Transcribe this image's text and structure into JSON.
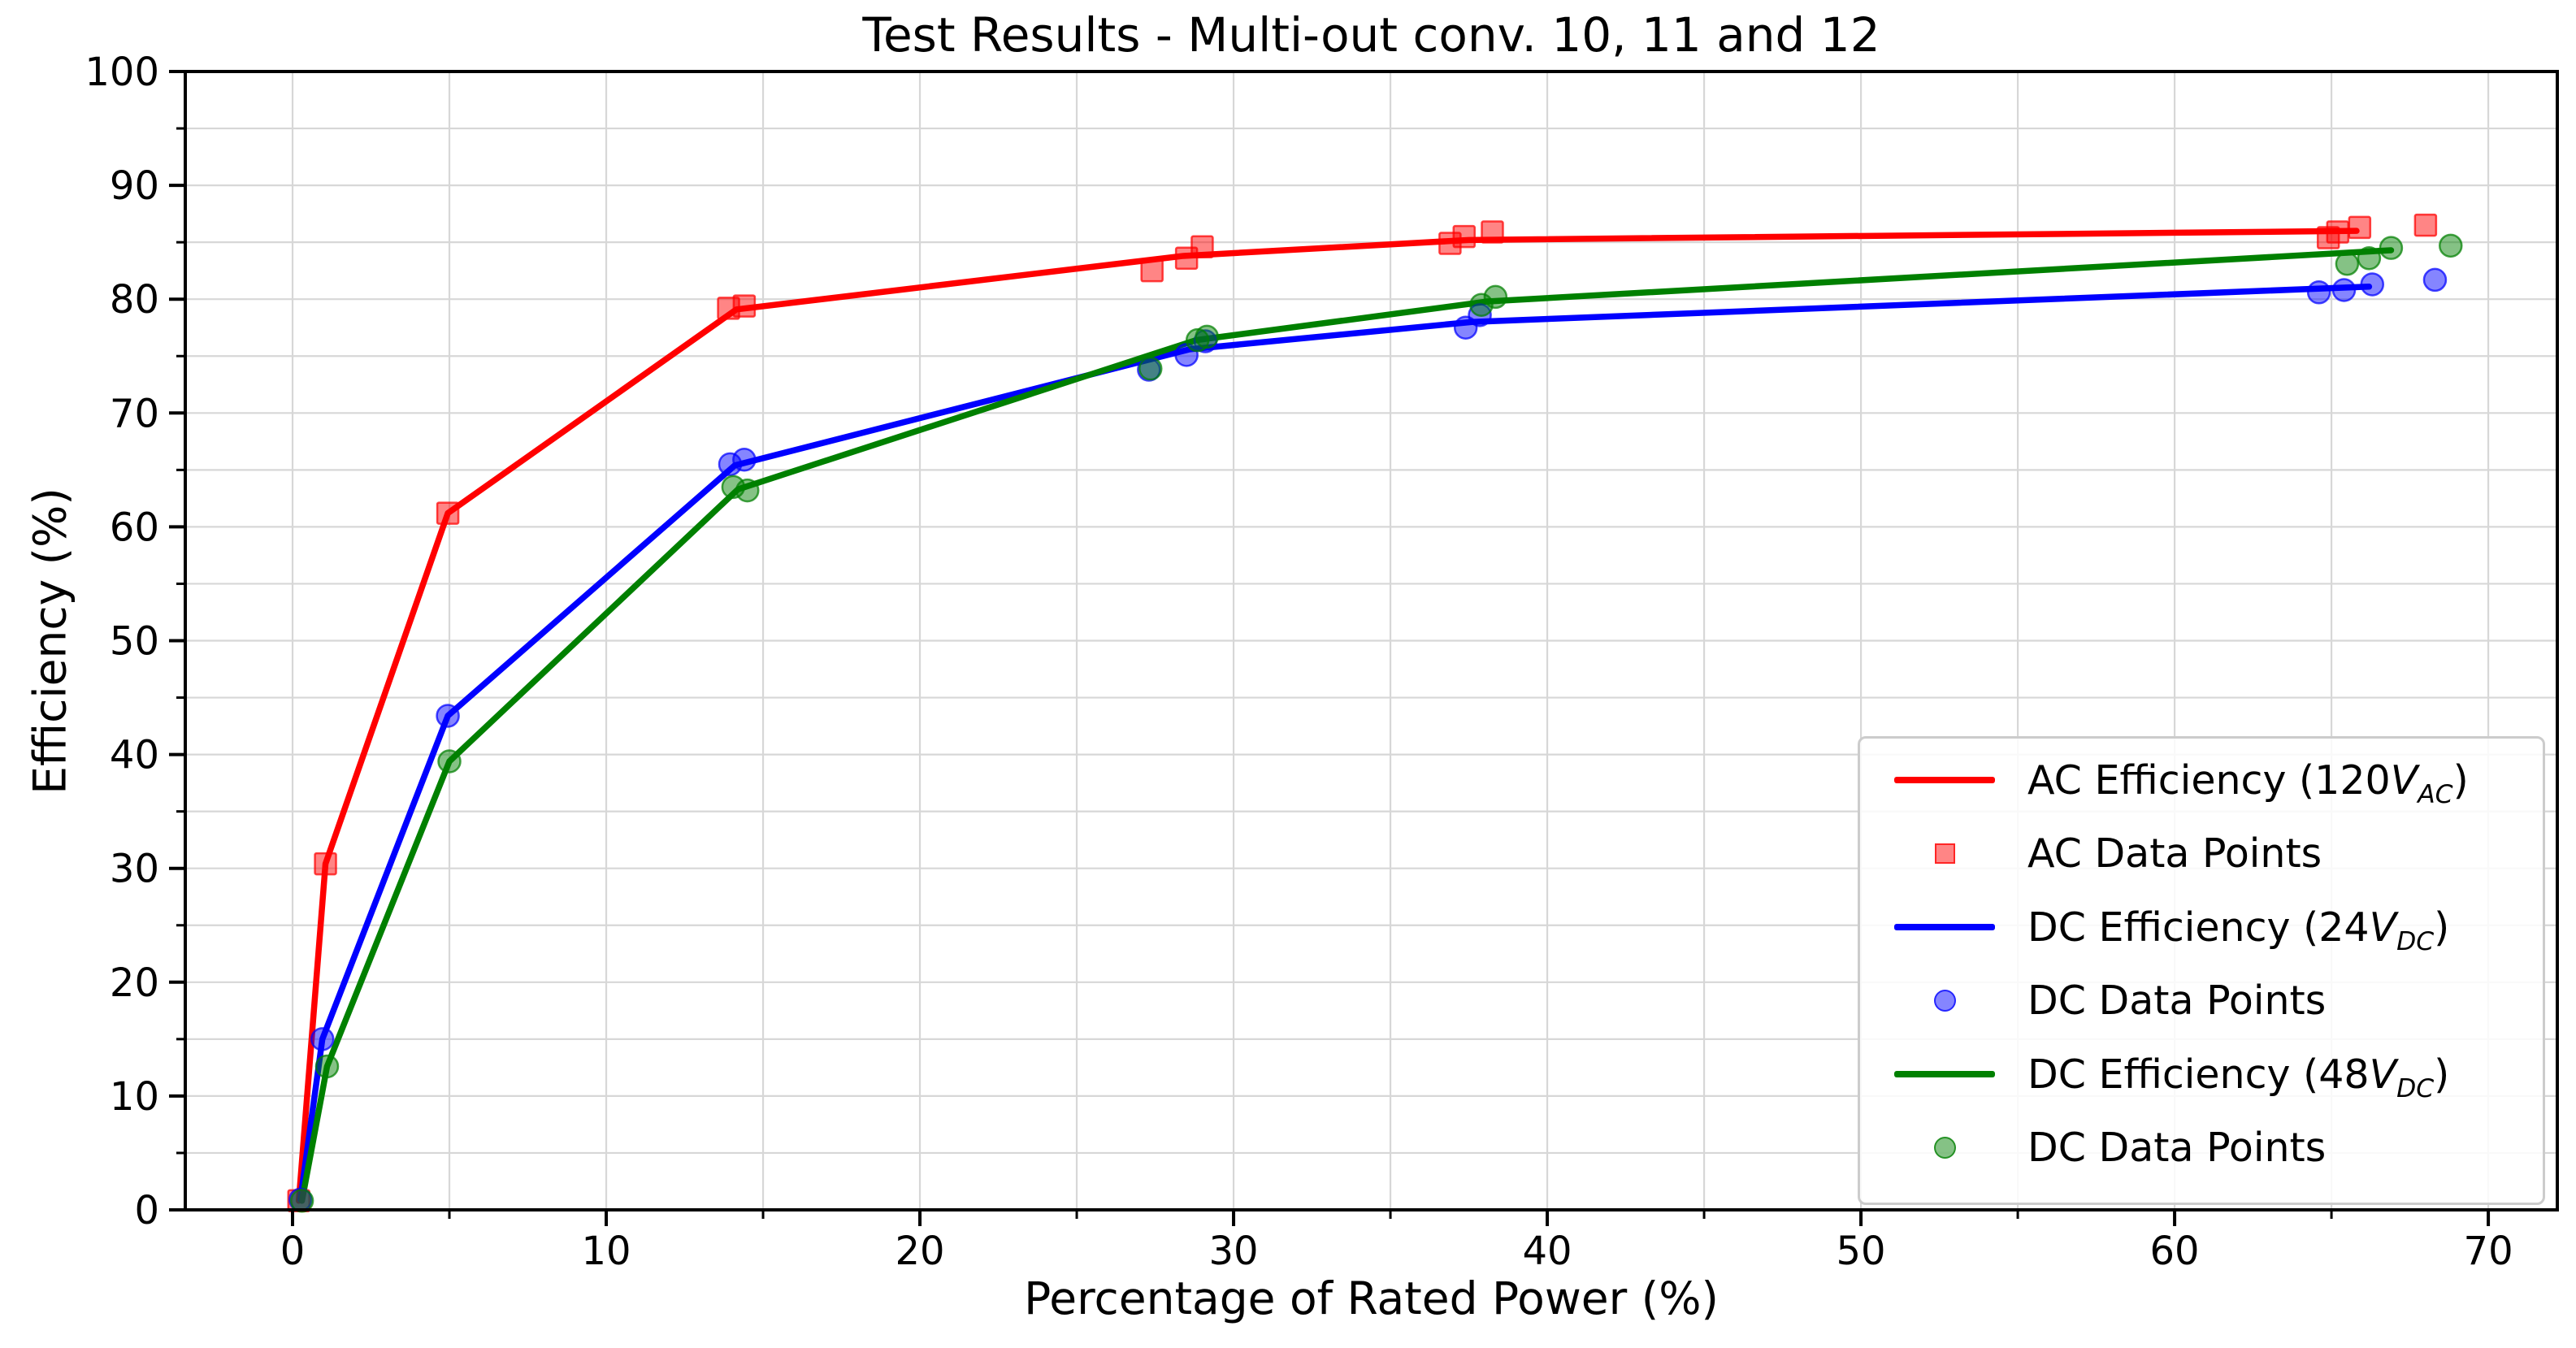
{
  "chart_data": {
    "type": "line+scatter",
    "title": "Test Results - Multi-out conv. 10, 11 and 12",
    "xlabel": "Percentage of Rated Power (%)",
    "ylabel": "Efficiency (%)",
    "xlim": [
      -3.42,
      72.2
    ],
    "ylim": [
      0,
      100
    ],
    "x_ticks": [
      0,
      10,
      20,
      30,
      40,
      50,
      60,
      70
    ],
    "y_ticks": [
      0,
      10,
      20,
      30,
      40,
      50,
      60,
      70,
      80,
      90,
      100
    ],
    "minor_tick_step": 5,
    "grid": {
      "step": 5,
      "color": "#d7d7d7",
      "on": true
    },
    "legend_position": "lower right",
    "series": [
      {
        "name": "AC Efficiency (120V_AC)",
        "kind": "line",
        "color": "#ff0000",
        "legend_label": {
          "pre": "AC Efficiency (120",
          "var": "V",
          "sub": "AC",
          "post": ")"
        },
        "points": [
          [
            0.2,
            0.8
          ],
          [
            1.05,
            30.4
          ],
          [
            4.95,
            61.2
          ],
          [
            14.15,
            79.1
          ],
          [
            28.4,
            83.8
          ],
          [
            37.5,
            85.2
          ],
          [
            65.8,
            86.0
          ]
        ]
      },
      {
        "name": "AC Data Points",
        "kind": "scatter",
        "marker": "square",
        "color": "#ff0000",
        "alpha": 0.5,
        "legend_label": {
          "pre": "AC Data Points"
        },
        "points": [
          [
            0.2,
            0.8
          ],
          [
            1.05,
            30.4
          ],
          [
            4.95,
            61.2
          ],
          [
            13.9,
            79.2
          ],
          [
            14.4,
            79.4
          ],
          [
            27.4,
            82.5
          ],
          [
            28.5,
            83.6
          ],
          [
            29.0,
            84.6
          ],
          [
            36.9,
            84.9
          ],
          [
            37.35,
            85.5
          ],
          [
            38.25,
            85.9
          ],
          [
            64.9,
            85.4
          ],
          [
            65.2,
            85.9
          ],
          [
            65.9,
            86.3
          ],
          [
            68.0,
            86.5
          ]
        ]
      },
      {
        "name": "DC Efficiency (24V_DC)",
        "kind": "line",
        "color": "#0000ff",
        "legend_label": {
          "pre": "DC Efficiency (24",
          "var": "V",
          "sub": "DC",
          "post": ")"
        },
        "points": [
          [
            0.25,
            0.9
          ],
          [
            0.95,
            15.0
          ],
          [
            4.95,
            43.4
          ],
          [
            14.1,
            65.4
          ],
          [
            28.6,
            75.6
          ],
          [
            37.6,
            78.0
          ],
          [
            66.2,
            81.1
          ]
        ]
      },
      {
        "name": "DC Data Points (24V)",
        "kind": "scatter",
        "marker": "circle",
        "color": "#0000ff",
        "alpha": 0.5,
        "legend_label": {
          "pre": "DC Data Points"
        },
        "points": [
          [
            0.25,
            0.9
          ],
          [
            0.95,
            15.0
          ],
          [
            4.95,
            43.4
          ],
          [
            13.95,
            65.5
          ],
          [
            14.4,
            65.9
          ],
          [
            27.3,
            73.8
          ],
          [
            28.5,
            75.1
          ],
          [
            29.1,
            76.3
          ],
          [
            37.4,
            77.5
          ],
          [
            37.85,
            78.6
          ],
          [
            64.6,
            80.6
          ],
          [
            65.4,
            80.8
          ],
          [
            66.3,
            81.3
          ],
          [
            68.3,
            81.7
          ]
        ]
      },
      {
        "name": "DC Efficiency (48V_DC)",
        "kind": "line",
        "color": "#008000",
        "legend_label": {
          "pre": "DC Efficiency (48",
          "var": "V",
          "sub": "DC",
          "post": ")"
        },
        "points": [
          [
            0.3,
            0.8
          ],
          [
            1.1,
            12.6
          ],
          [
            5.0,
            39.4
          ],
          [
            14.2,
            63.3
          ],
          [
            28.8,
            76.4
          ],
          [
            38.1,
            79.8
          ],
          [
            66.9,
            84.3
          ]
        ]
      },
      {
        "name": "DC Data Points (48V)",
        "kind": "scatter",
        "marker": "circle",
        "color": "#008000",
        "alpha": 0.5,
        "legend_label": {
          "pre": "DC Data Points"
        },
        "points": [
          [
            0.3,
            0.8
          ],
          [
            1.1,
            12.6
          ],
          [
            5.0,
            39.4
          ],
          [
            14.05,
            63.5
          ],
          [
            14.5,
            63.2
          ],
          [
            27.35,
            73.9
          ],
          [
            28.85,
            76.4
          ],
          [
            29.15,
            76.7
          ],
          [
            37.9,
            79.5
          ],
          [
            38.35,
            80.2
          ],
          [
            65.5,
            83.1
          ],
          [
            66.2,
            83.6
          ],
          [
            66.9,
            84.5
          ],
          [
            68.8,
            84.7
          ]
        ]
      }
    ]
  }
}
